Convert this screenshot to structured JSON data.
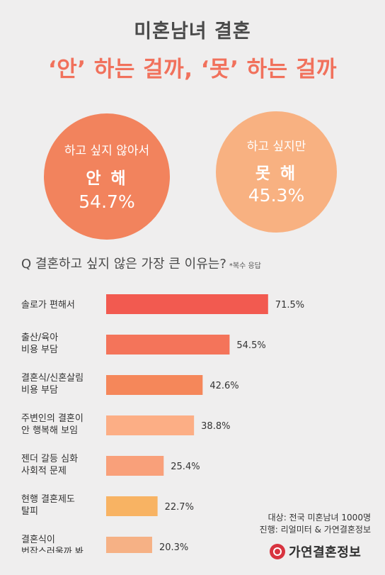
{
  "header": {
    "title_line1": "미혼남녀 결혼",
    "title_line2": "‘안’ 하는 걸까, ‘못’ 하는 걸까"
  },
  "summary": [
    {
      "line1": "하고 싶지 않아서",
      "line2": "안 해",
      "value_label": "54.7%",
      "value": 54.7,
      "color": "#f2835d"
    },
    {
      "line1": "하고 싶지만",
      "line2": "못 해",
      "value_label": "45.3%",
      "value": 45.3,
      "color": "#f8b181"
    }
  ],
  "question": {
    "text": "Q 결혼하고 싶지 않은 가장 큰 이유는?",
    "note": "*복수 응답"
  },
  "chart_data": {
    "type": "bar",
    "orientation": "horizontal",
    "categories": [
      [
        "솔로가 편해서"
      ],
      [
        "출산/육아",
        "비용 부담"
      ],
      [
        "결혼식/신혼살림",
        "비용 부담"
      ],
      [
        "주변인의 결혼이",
        "안 행복해 보임"
      ],
      [
        "젠더 갈등 심화",
        "사회적 문제"
      ],
      [
        "현행 결혼제도",
        "탈피"
      ],
      [
        "결혼식이",
        "번잡스러울까 봐"
      ]
    ],
    "values": [
      71.5,
      54.5,
      42.6,
      38.8,
      25.4,
      22.7,
      20.3
    ],
    "value_labels": [
      "71.5%",
      "54.5%",
      "42.6%",
      "38.8%",
      "25.4%",
      "22.7%",
      "20.3%"
    ],
    "colors": [
      "#f25a50",
      "#f4745a",
      "#f5875a",
      "#fcae85",
      "#f9a07a",
      "#f8b363",
      "#f6b185"
    ],
    "xlim": [
      0,
      100
    ],
    "grid": false,
    "legend": "none"
  },
  "footer": {
    "line1": "대상: 전국 미혼남녀 1000명",
    "line2": "진행: 리얼미터 & 가연결혼정보"
  },
  "brand": {
    "name": "가연결혼정보",
    "logo_icon": "brand-logo-icon"
  }
}
